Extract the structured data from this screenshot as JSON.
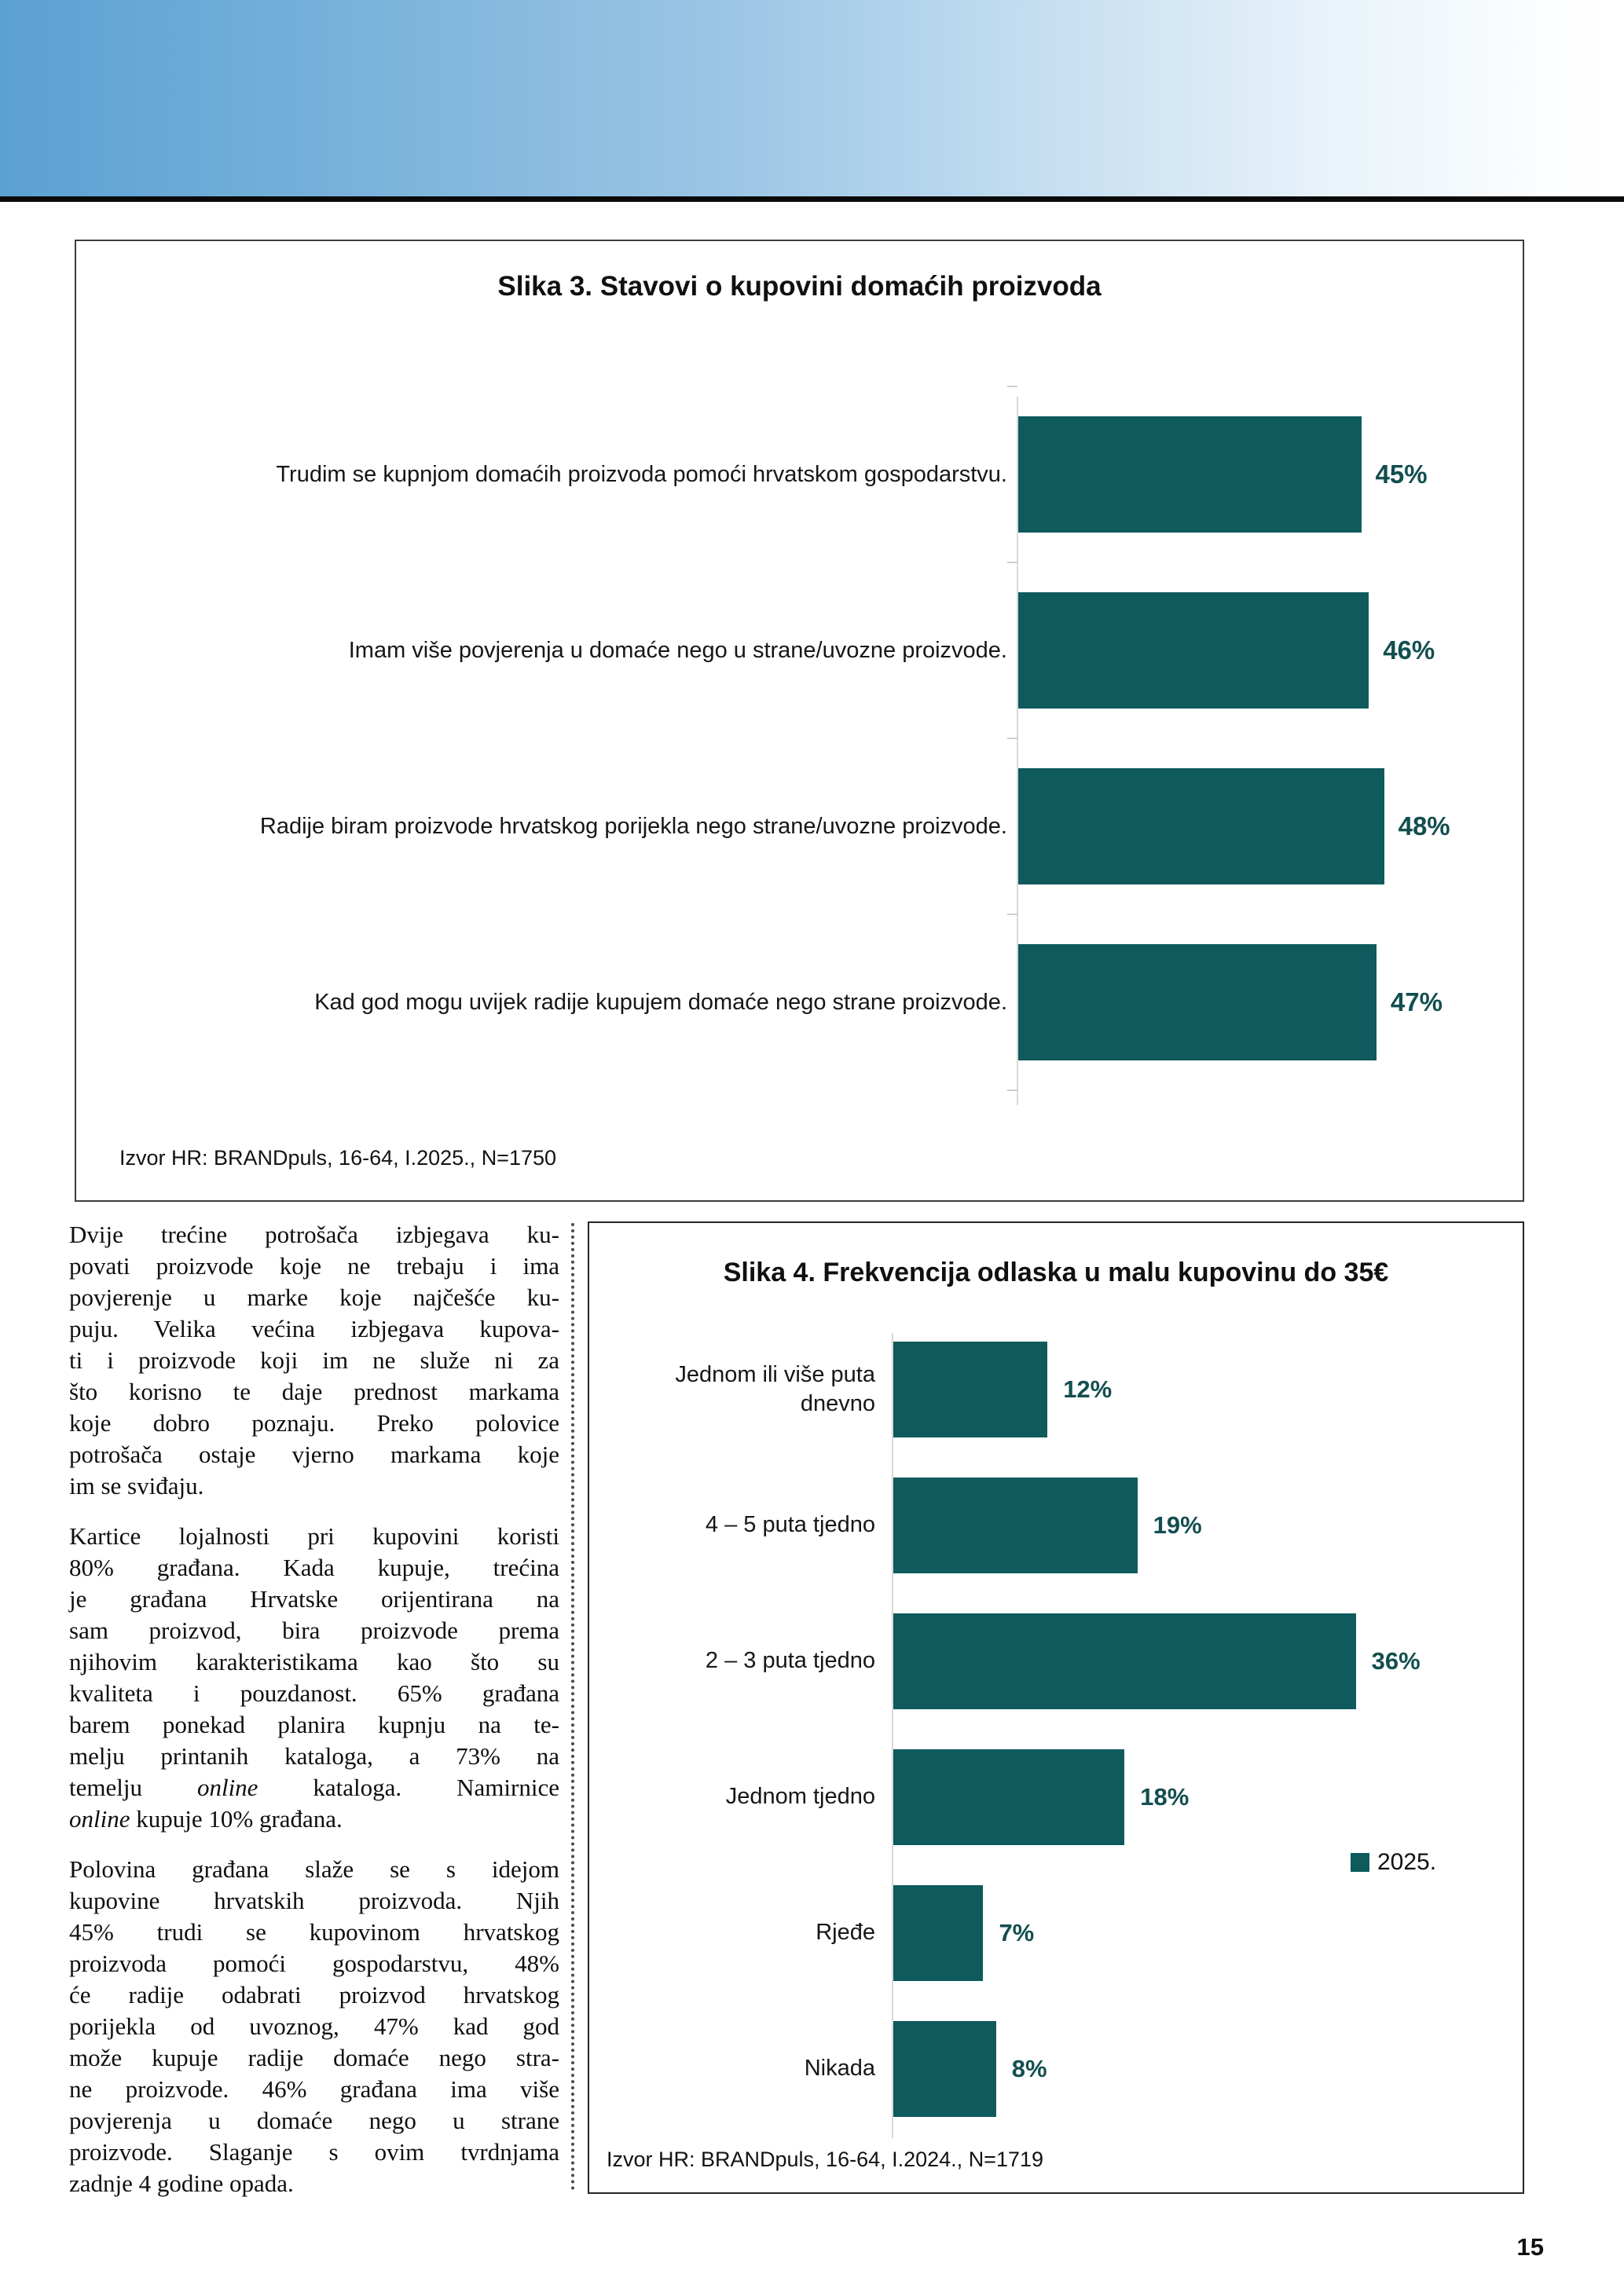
{
  "page": {
    "number": "15"
  },
  "colors": {
    "bar_teal": "#0e5a5c",
    "value_text_teal": "#134e50",
    "banner_blue": "#5ba1d2"
  },
  "chart_data": [
    {
      "type": "bar",
      "orientation": "horizontal",
      "title": "Slika 3. Stavovi o kupovini domaćih proizvoda",
      "categories": [
        "Trudim se kupnjom domaćih proizvoda pomoći hrvatskom gospodarstvu.",
        "Imam više povjerenja u domaće nego u strane/uvozne proizvode.",
        "Radije biram proizvode hrvatskog porijekla nego strane/uvozne proizvode.",
        "Kad god mogu uvijek radije kupujem domaće nego strane proizvode."
      ],
      "values": [
        45,
        46,
        48,
        47
      ],
      "value_labels": [
        "45%",
        "46%",
        "48%",
        "47%"
      ],
      "unit": "%",
      "xlim": [
        0,
        50
      ],
      "grid": false,
      "source": "Izvor HR: BRANDpuls, 16-64, I.2025., N=1750"
    },
    {
      "type": "bar",
      "orientation": "horizontal",
      "title": "Slika 4. Frekvencija odlaska u malu kupovinu do 35€",
      "categories": [
        "Jednom ili više puta dnevno",
        "4 – 5 puta tjedno",
        "2 – 3 puta tjedno",
        "Jednom tjedno",
        "Rjeđe",
        "Nikada"
      ],
      "values": [
        12,
        19,
        36,
        18,
        7,
        8
      ],
      "value_labels": [
        "12%",
        "19%",
        "36%",
        "18%",
        "7%",
        "8%"
      ],
      "unit": "%",
      "xlim": [
        0,
        40
      ],
      "grid": false,
      "legend_label": "2025.",
      "legend_position": "right-middle",
      "source": "Izvor HR: BRANDpuls, 16-64, I.2024., N=1719"
    }
  ],
  "article": {
    "paragraphs": [
      {
        "lines": [
          "Dvije trećine potrošača izbjegava ku-",
          "povati proizvode koje ne trebaju i ima",
          "povjerenje u marke koje najčešće ku-",
          "puju. Velika većina izbjegava kupova-",
          "ti i proizvode koji im ne služe ni za",
          "što korisno te daje prednost markama",
          "koje dobro poznaju. Preko polovice",
          "potrošača ostaje vjerno markama koje",
          "im se sviđaju."
        ]
      },
      {
        "lines": [
          "Kartice lojalnosti pri kupovini koristi",
          "80% građana. Kada kupuje, trećina",
          "je građana Hrvatske orijentirana na",
          "sam proizvod, bira proizvode prema",
          "njihovim karakteristikama kao što su",
          "kvaliteta i pouzdanost. 65% građana",
          "barem ponekad planira kupnju na te-",
          "melju printanih kataloga, a 73% na",
          "temelju *online* kataloga. Namirnice",
          "*online* kupuje 10% građana."
        ]
      },
      {
        "lines": [
          "Polovina građana slaže se s idejom",
          "kupovine hrvatskih proizvoda. Njih",
          "45% trudi se kupovinom hrvatskog",
          "proizvoda pomoći gospodarstvu, 48%",
          "će radije odabrati proizvod hrvatskog",
          "porijekla od uvoznog, 47% kad god",
          "može kupuje radije domaće nego stra-",
          "ne proizvode. 46% građana ima više",
          "povjerenja u domaće nego u strane",
          "proizvode. Slaganje s ovim tvrdnjama",
          "zadnje 4 godine opada."
        ]
      }
    ]
  }
}
